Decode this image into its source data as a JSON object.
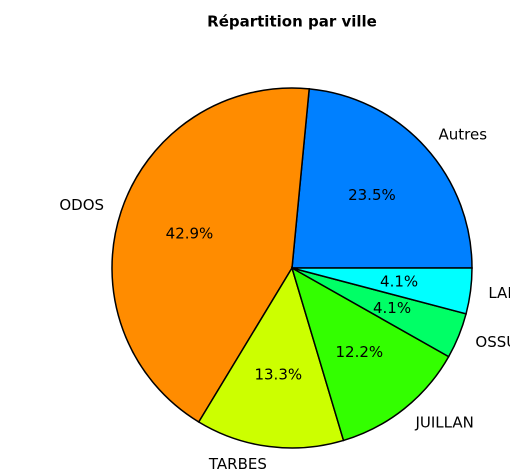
{
  "chart_data": {
    "type": "pie",
    "title": "Répartition par ville",
    "categories": [
      "Autres",
      "ODOS",
      "TARBES",
      "JUILLAN",
      "OSSUN",
      "LALOUBERE"
    ],
    "values": [
      23.5,
      42.9,
      13.3,
      12.2,
      4.1,
      4.1
    ],
    "value_labels": [
      "23.5%",
      "42.9%",
      "13.3%",
      "12.2%",
      "4.1%",
      "4.1%"
    ],
    "colors": [
      "#0080ff",
      "#ff8c00",
      "#ccff00",
      "#33ff00",
      "#00ff66",
      "#00ffff"
    ]
  }
}
